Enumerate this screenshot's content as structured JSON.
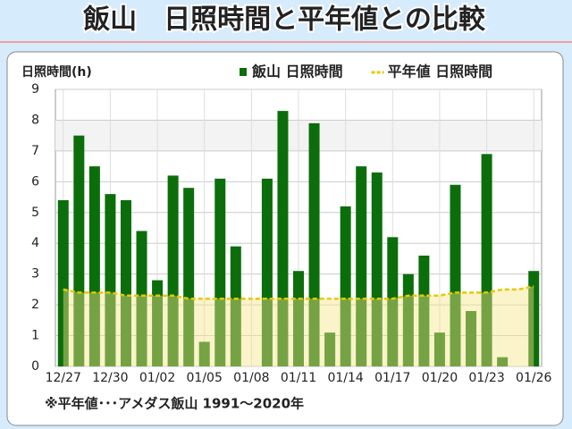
{
  "chart_data": {
    "type": "bar",
    "title": "飯山　日照時間と平年値との比較",
    "y_label": "日照時間(h)",
    "note": "※平年値･･･アメダス飯山 1991～2020年",
    "categories": [
      "12/27",
      null,
      null,
      "12/30",
      null,
      null,
      "01/02",
      null,
      null,
      "01/05",
      null,
      null,
      "01/08",
      null,
      null,
      "01/11",
      null,
      null,
      "01/14",
      null,
      null,
      "01/17",
      null,
      null,
      "01/20",
      null,
      null,
      "01/23",
      null,
      null,
      "01/26"
    ],
    "series": [
      {
        "name": "飯山 日照時間",
        "type": "bar",
        "color": "#0b6e0b",
        "values": [
          5.4,
          7.5,
          6.5,
          5.6,
          5.4,
          4.4,
          2.8,
          6.2,
          5.8,
          0.8,
          6.1,
          3.9,
          0,
          6.1,
          8.3,
          3.1,
          7.9,
          1.1,
          5.2,
          6.5,
          6.3,
          4.2,
          3.0,
          3.6,
          1.1,
          5.9,
          1.8,
          6.9,
          0.3,
          0,
          3.1
        ]
      },
      {
        "name": "平年値 日照時間",
        "type": "line",
        "color": "#e8c800",
        "values": [
          2.5,
          2.4,
          2.4,
          2.4,
          2.3,
          2.3,
          2.3,
          2.3,
          2.2,
          2.2,
          2.2,
          2.2,
          2.2,
          2.2,
          2.2,
          2.2,
          2.2,
          2.2,
          2.2,
          2.2,
          2.2,
          2.2,
          2.3,
          2.3,
          2.3,
          2.4,
          2.4,
          2.4,
          2.5,
          2.5,
          2.6
        ]
      }
    ],
    "ylim": [
      0,
      9
    ],
    "yticks": [
      0,
      1,
      2,
      3,
      4,
      5,
      6,
      7,
      8,
      9
    ],
    "grid": true
  }
}
